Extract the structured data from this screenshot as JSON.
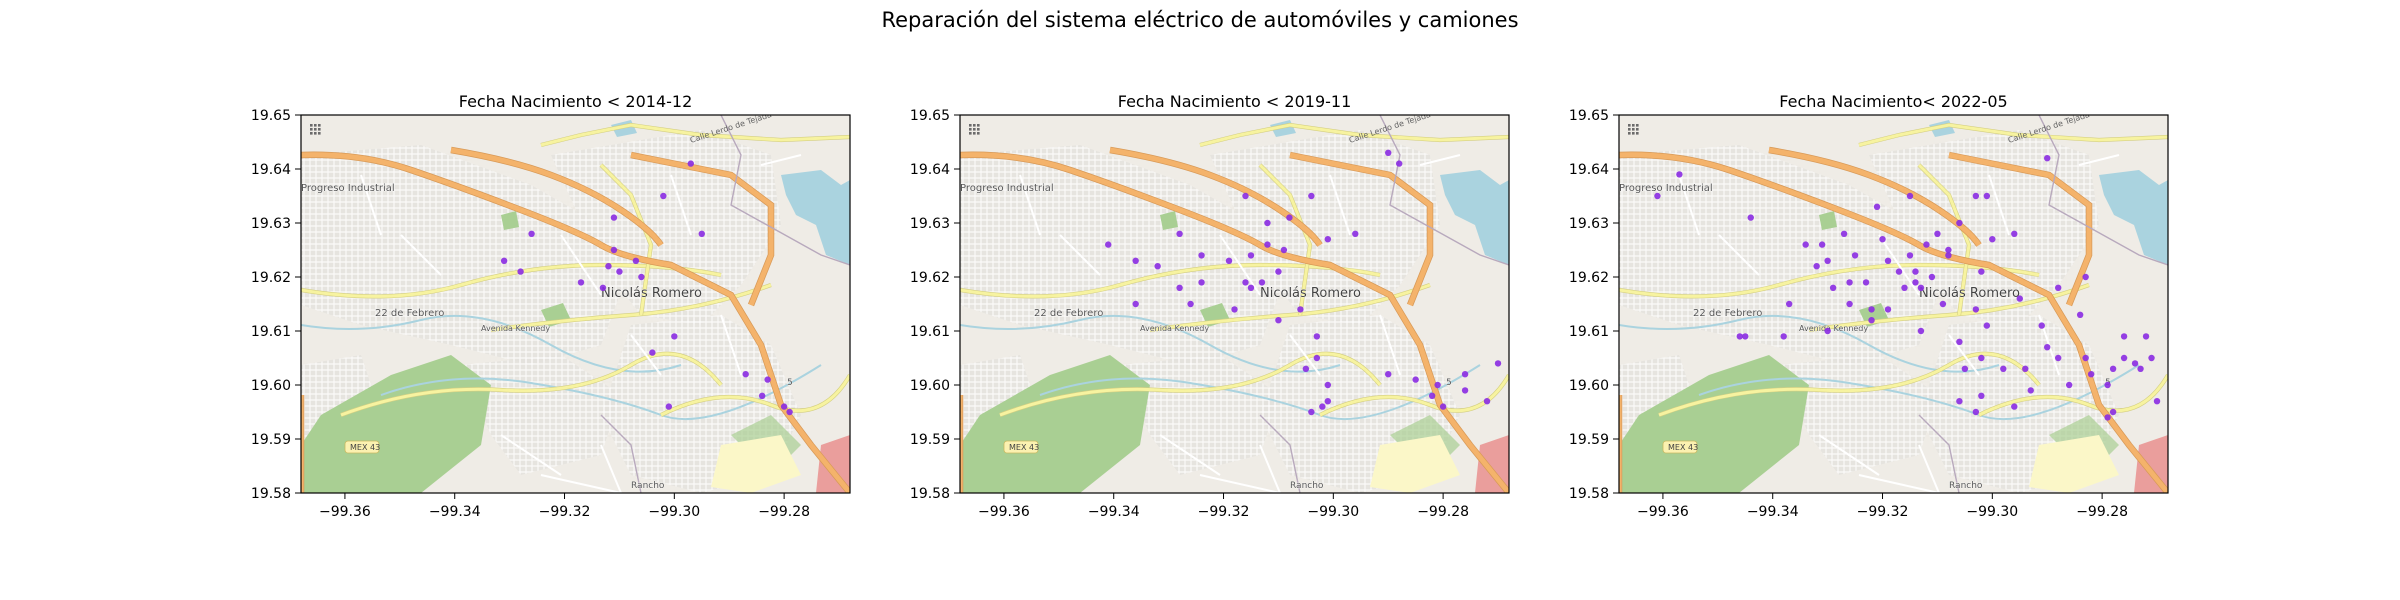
{
  "figure": {
    "title": "Reparación del sistema eléctrico de automóviles y camiones"
  },
  "map_labels": {
    "progreso": "Progreso Industrial",
    "febrero": "22 de Febrero",
    "nicolas": "Nicolás Romero",
    "kennedy": "Avenida Kennedy",
    "mex43": "MEX 43",
    "rancho": "Rancho",
    "tejada": "Calle Lerdo de Tejada",
    "five": "5"
  },
  "colors": {
    "point": "#8a2be2",
    "land": "#efece6",
    "park": "#a9cf93",
    "water": "#aad3df",
    "major_road": "#f4b36b",
    "secondary_road": "#f7f3a0",
    "minor_road": "#ffffff"
  },
  "chart_data": [
    {
      "type": "scatter",
      "title": "Fecha Nacimiento < 2014-12",
      "xlim": [
        -99.368,
        -99.268
      ],
      "ylim": [
        19.58,
        19.65
      ],
      "xticks": [
        "−99.36",
        "−99.34",
        "−99.32",
        "−99.30",
        "−99.28"
      ],
      "yticks": [
        "19.65",
        "19.64",
        "19.63",
        "19.62",
        "19.61",
        "19.60",
        "19.59",
        "19.58"
      ],
      "points": [
        [
          -99.297,
          19.641
        ],
        [
          -99.302,
          19.635
        ],
        [
          -99.311,
          19.631
        ],
        [
          -99.295,
          19.628
        ],
        [
          -99.326,
          19.628
        ],
        [
          -99.311,
          19.625
        ],
        [
          -99.307,
          19.623
        ],
        [
          -99.331,
          19.623
        ],
        [
          -99.312,
          19.622
        ],
        [
          -99.31,
          19.621
        ],
        [
          -99.328,
          19.621
        ],
        [
          -99.306,
          19.62
        ],
        [
          -99.317,
          19.619
        ],
        [
          -99.313,
          19.618
        ],
        [
          -99.3,
          19.609
        ],
        [
          -99.304,
          19.606
        ],
        [
          -99.287,
          19.602
        ],
        [
          -99.283,
          19.601
        ],
        [
          -99.284,
          19.598
        ],
        [
          -99.28,
          19.596
        ],
        [
          -99.279,
          19.595
        ],
        [
          -99.301,
          19.596
        ]
      ]
    },
    {
      "type": "scatter",
      "title": "Fecha Nacimiento < 2019-11",
      "xlim": [
        -99.368,
        -99.268
      ],
      "ylim": [
        19.58,
        19.65
      ],
      "xticks": [
        "−99.36",
        "−99.34",
        "−99.32",
        "−99.30",
        "−99.28"
      ],
      "yticks": [
        "19.65",
        "19.64",
        "19.63",
        "19.62",
        "19.61",
        "19.60",
        "19.59",
        "19.58"
      ],
      "points": [
        [
          -99.29,
          19.643
        ],
        [
          -99.288,
          19.641
        ],
        [
          -99.316,
          19.635
        ],
        [
          -99.304,
          19.635
        ],
        [
          -99.308,
          19.631
        ],
        [
          -99.312,
          19.63
        ],
        [
          -99.296,
          19.628
        ],
        [
          -99.328,
          19.628
        ],
        [
          -99.301,
          19.627
        ],
        [
          -99.341,
          19.626
        ],
        [
          -99.312,
          19.626
        ],
        [
          -99.309,
          19.625
        ],
        [
          -99.324,
          19.624
        ],
        [
          -99.315,
          19.624
        ],
        [
          -99.336,
          19.623
        ],
        [
          -99.319,
          19.623
        ],
        [
          -99.332,
          19.622
        ],
        [
          -99.31,
          19.621
        ],
        [
          -99.313,
          19.619
        ],
        [
          -99.324,
          19.619
        ],
        [
          -99.316,
          19.619
        ],
        [
          -99.328,
          19.618
        ],
        [
          -99.315,
          19.618
        ],
        [
          -99.326,
          19.615
        ],
        [
          -99.336,
          19.615
        ],
        [
          -99.318,
          19.614
        ],
        [
          -99.306,
          19.614
        ],
        [
          -99.31,
          19.612
        ],
        [
          -99.303,
          19.609
        ],
        [
          -99.303,
          19.605
        ],
        [
          -99.305,
          19.603
        ],
        [
          -99.301,
          19.6
        ],
        [
          -99.301,
          19.597
        ],
        [
          -99.302,
          19.596
        ],
        [
          -99.304,
          19.595
        ],
        [
          -99.29,
          19.602
        ],
        [
          -99.285,
          19.601
        ],
        [
          -99.281,
          19.6
        ],
        [
          -99.276,
          19.602
        ],
        [
          -99.282,
          19.598
        ],
        [
          -99.28,
          19.596
        ],
        [
          -99.276,
          19.599
        ],
        [
          -99.272,
          19.597
        ],
        [
          -99.27,
          19.604
        ]
      ]
    },
    {
      "type": "scatter",
      "title": "Fecha Nacimiento< 2022-05",
      "xlim": [
        -99.368,
        -99.268
      ],
      "ylim": [
        19.58,
        19.65
      ],
      "xticks": [
        "−99.36",
        "−99.34",
        "−99.32",
        "−99.30",
        "−99.28"
      ],
      "yticks": [
        "19.65",
        "19.64",
        "19.63",
        "19.62",
        "19.61",
        "19.60",
        "19.59",
        "19.58"
      ],
      "points": [
        [
          -99.29,
          19.642
        ],
        [
          -99.357,
          19.639
        ],
        [
          -99.361,
          19.635
        ],
        [
          -99.344,
          19.631
        ],
        [
          -99.321,
          19.633
        ],
        [
          -99.315,
          19.635
        ],
        [
          -99.303,
          19.635
        ],
        [
          -99.301,
          19.635
        ],
        [
          -99.306,
          19.63
        ],
        [
          -99.31,
          19.628
        ],
        [
          -99.296,
          19.628
        ],
        [
          -99.327,
          19.628
        ],
        [
          -99.3,
          19.627
        ],
        [
          -99.32,
          19.627
        ],
        [
          -99.334,
          19.626
        ],
        [
          -99.331,
          19.626
        ],
        [
          -99.312,
          19.626
        ],
        [
          -99.308,
          19.625
        ],
        [
          -99.325,
          19.624
        ],
        [
          -99.315,
          19.624
        ],
        [
          -99.308,
          19.624
        ],
        [
          -99.33,
          19.623
        ],
        [
          -99.319,
          19.623
        ],
        [
          -99.332,
          19.622
        ],
        [
          -99.314,
          19.621
        ],
        [
          -99.317,
          19.621
        ],
        [
          -99.302,
          19.621
        ],
        [
          -99.311,
          19.62
        ],
        [
          -99.314,
          19.619
        ],
        [
          -99.316,
          19.618
        ],
        [
          -99.323,
          19.619
        ],
        [
          -99.326,
          19.619
        ],
        [
          -99.329,
          19.618
        ],
        [
          -99.313,
          19.618
        ],
        [
          -99.295,
          19.616
        ],
        [
          -99.288,
          19.618
        ],
        [
          -99.283,
          19.62
        ],
        [
          -99.326,
          19.615
        ],
        [
          -99.337,
          19.615
        ],
        [
          -99.322,
          19.614
        ],
        [
          -99.319,
          19.614
        ],
        [
          -99.309,
          19.615
        ],
        [
          -99.303,
          19.614
        ],
        [
          -99.301,
          19.611
        ],
        [
          -99.291,
          19.611
        ],
        [
          -99.284,
          19.613
        ],
        [
          -99.306,
          19.608
        ],
        [
          -99.313,
          19.61
        ],
        [
          -99.322,
          19.612
        ],
        [
          -99.33,
          19.61
        ],
        [
          -99.338,
          19.609
        ],
        [
          -99.345,
          19.609
        ],
        [
          -99.346,
          19.609
        ],
        [
          -99.29,
          19.607
        ],
        [
          -99.288,
          19.605
        ],
        [
          -99.302,
          19.605
        ],
        [
          -99.276,
          19.609
        ],
        [
          -99.272,
          19.609
        ],
        [
          -99.283,
          19.605
        ],
        [
          -99.276,
          19.605
        ],
        [
          -99.294,
          19.603
        ],
        [
          -99.298,
          19.603
        ],
        [
          -99.305,
          19.603
        ],
        [
          -99.282,
          19.602
        ],
        [
          -99.278,
          19.603
        ],
        [
          -99.274,
          19.604
        ],
        [
          -99.271,
          19.605
        ],
        [
          -99.273,
          19.603
        ],
        [
          -99.286,
          19.6
        ],
        [
          -99.279,
          19.6
        ],
        [
          -99.293,
          19.599
        ],
        [
          -99.302,
          19.598
        ],
        [
          -99.306,
          19.597
        ],
        [
          -99.296,
          19.596
        ],
        [
          -99.303,
          19.595
        ],
        [
          -99.278,
          19.595
        ],
        [
          -99.279,
          19.594
        ],
        [
          -99.27,
          19.597
        ]
      ]
    }
  ]
}
